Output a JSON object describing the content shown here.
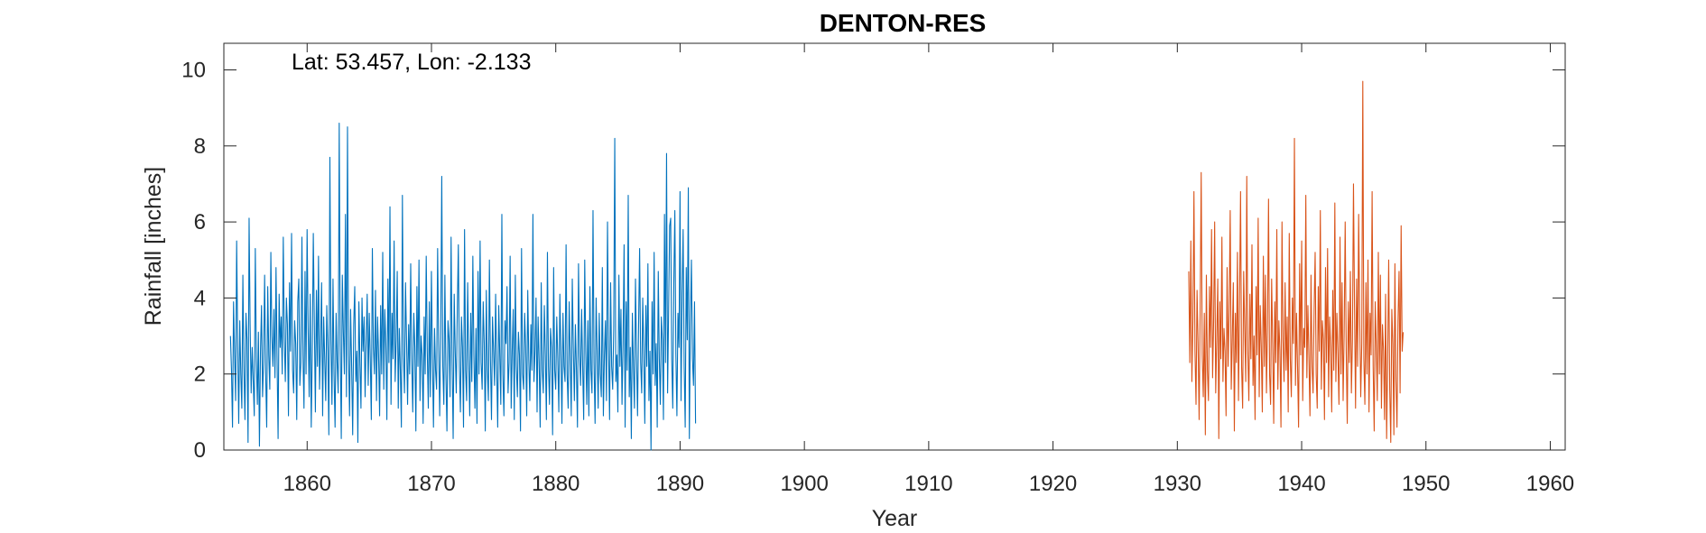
{
  "chart_data": {
    "type": "line",
    "title": "DENTON-RES",
    "annotation": "Lat: 53.457, Lon: -2.133",
    "xlabel": "Year",
    "ylabel": "Rainfall [inches]",
    "xlim": [
      1853.3,
      1961.2
    ],
    "ylim": [
      0,
      10.7
    ],
    "xticks": [
      1860,
      1870,
      1880,
      1890,
      1900,
      1910,
      1920,
      1930,
      1940,
      1950,
      1960
    ],
    "yticks": [
      0,
      2,
      4,
      6,
      8,
      10
    ],
    "grid": false,
    "colors": {
      "series_1": "#0072BD",
      "series_2": "#D95319",
      "axis": "#262626"
    },
    "series": [
      {
        "start": 1853.83,
        "step": 0.08333,
        "color": "#0072BD",
        "values": [
          3.0,
          2.1,
          0.6,
          3.9,
          2.5,
          1.3,
          5.5,
          2.8,
          0.7,
          3.4,
          2.0,
          1.1,
          4.6,
          2.2,
          0.8,
          3.6,
          2.9,
          0.2,
          6.1,
          3.3,
          1.5,
          2.7,
          1.8,
          0.9,
          5.3,
          2.4,
          1.2,
          3.1,
          0.1,
          2.6,
          3.8,
          1.4,
          2.3,
          4.6,
          2.0,
          0.6,
          4.3,
          2.5,
          1.6,
          5.2,
          3.0,
          2.2,
          3.7,
          1.9,
          4.8,
          2.4,
          0.3,
          4.1,
          2.7,
          3.5,
          2.0,
          5.6,
          2.9,
          1.8,
          4.0,
          3.3,
          0.9,
          4.4,
          2.6,
          5.7,
          2.1,
          1.5,
          3.4,
          2.8,
          0.8,
          3.9,
          4.5,
          1.7,
          2.3,
          5.6,
          2.5,
          1.1,
          4.7,
          2.0,
          5.8,
          3.2,
          1.4,
          4.1,
          0.6,
          2.6,
          5.7,
          3.3,
          1.0,
          4.2,
          2.2,
          5.1,
          1.6,
          2.8,
          4.4,
          0.9,
          3.5,
          2.4,
          1.3,
          3.8,
          2.6,
          0.4,
          7.7,
          2.9,
          1.2,
          4.5,
          2.0,
          0.6,
          3.6,
          2.3,
          1.5,
          8.6,
          2.8,
          0.3,
          4.6,
          3.1,
          2.0,
          6.2,
          1.4,
          8.5,
          2.5,
          0.9,
          3.7,
          2.2,
          0.4,
          3.3,
          4.3,
          1.8,
          2.6,
          0.2,
          3.9,
          2.3,
          1.1,
          4.0,
          2.6,
          3.5,
          1.4,
          2.9,
          4.1,
          1.7,
          3.6,
          2.4,
          0.8,
          5.3,
          2.7,
          2.0,
          4.2,
          1.3,
          3.5,
          2.5,
          0.9,
          3.8,
          2.0,
          5.2,
          1.6,
          3.7,
          2.8,
          0.8,
          4.5,
          2.3,
          6.4,
          1.2,
          3.6,
          2.4,
          5.5,
          1.8,
          2.9,
          4.7,
          1.1,
          3.2,
          2.1,
          0.6,
          6.7,
          2.5,
          1.5,
          4.4,
          2.9,
          1.2,
          3.3,
          2.0,
          4.9,
          2.4,
          1.0,
          3.6,
          2.7,
          0.5,
          4.3,
          2.2,
          5.0,
          1.3,
          3.0,
          2.5,
          0.7,
          3.5,
          2.0,
          5.1,
          2.6,
          1.1,
          3.9,
          1.4,
          4.7,
          2.4,
          0.6,
          3.2,
          2.1,
          1.6,
          5.3,
          2.8,
          0.9,
          3.1,
          7.2,
          2.2,
          1.2,
          4.6,
          2.0,
          0.5,
          3.4,
          2.9,
          1.4,
          5.6,
          2.3,
          0.3,
          4.1,
          2.6,
          1.5,
          3.7,
          5.4,
          2.2,
          1.0,
          3.5,
          2.7,
          0.6,
          5.8,
          2.1,
          1.3,
          4.4,
          2.4,
          0.9,
          3.6,
          1.8,
          5.1,
          2.5,
          1.1,
          3.2,
          0.7,
          4.7,
          2.0,
          5.5,
          2.3,
          1.6,
          3.9,
          2.8,
          0.5,
          4.2,
          2.1,
          1.3,
          5.0,
          2.4,
          0.8,
          3.5,
          2.6,
          1.7,
          4.1,
          2.2,
          0.6,
          3.8,
          2.5,
          1.2,
          6.2,
          2.0,
          0.9,
          3.4,
          2.8,
          4.3,
          1.5,
          2.3,
          5.1,
          1.1,
          2.6,
          3.7,
          0.8,
          4.6,
          2.2,
          1.4,
          3.1,
          2.5,
          0.5,
          5.3,
          2.0,
          1.6,
          3.6,
          2.7,
          0.9,
          4.2,
          2.4,
          1.3,
          3.3,
          2.1,
          6.2,
          1.8,
          2.6,
          4.0,
          1.0,
          3.5,
          2.3,
          0.6,
          4.4,
          2.1,
          1.5,
          3.8,
          2.5,
          0.8,
          5.2,
          2.2,
          1.2,
          3.2,
          2.7,
          0.4,
          4.8,
          2.1,
          1.6,
          3.5,
          2.4,
          1.0,
          4.1,
          2.6,
          0.7,
          3.6,
          2.2,
          1.8,
          5.4,
          2.0,
          1.1,
          3.9,
          2.4,
          0.9,
          4.5,
          2.7,
          1.3,
          3.3,
          2.1,
          0.6,
          4.9,
          2.5,
          1.7,
          3.7,
          2.2,
          0.8,
          5.0,
          2.6,
          1.2,
          3.4,
          0.9,
          4.3,
          2.1,
          1.5,
          6.3,
          2.3,
          0.7,
          4.0,
          2.6,
          1.1,
          3.6,
          2.0,
          1.4,
          4.8,
          0.9,
          2.5,
          3.4,
          1.3,
          6.0,
          2.7,
          0.8,
          4.4,
          2.2,
          1.6,
          3.2,
          8.2,
          1.8,
          2.5,
          1.0,
          4.6,
          2.2,
          3.7,
          1.2,
          2.8,
          5.4,
          0.6,
          3.9,
          2.1,
          6.7,
          1.4,
          2.7,
          0.3,
          3.6,
          2.2,
          1.1,
          4.5,
          2.5,
          0.9,
          3.3,
          5.3,
          2.3,
          1.5,
          4.0,
          2.6,
          0.7,
          3.8,
          2.2,
          4.9,
          1.3,
          2.6,
          0.0,
          3.9,
          2.0,
          5.2,
          1.7,
          2.8,
          0.6,
          4.7,
          2.4,
          1.2,
          3.5,
          2.9,
          0.8,
          6.2,
          2.3,
          7.8,
          1.5,
          3.7,
          5.9,
          6.1,
          2.4,
          1.1,
          4.4,
          6.3,
          2.5,
          0.9,
          3.6,
          2.7,
          6.8,
          1.3,
          4.1,
          5.8,
          2.2,
          0.6,
          4.8,
          2.9,
          6.9,
          0.3,
          3.3,
          5.0,
          2.4,
          1.7,
          3.9,
          0.7
        ]
      },
      {
        "start": 1930.92,
        "step": 0.08333,
        "color": "#D95319",
        "values": [
          4.7,
          2.3,
          5.5,
          1.8,
          3.4,
          6.8,
          2.6,
          1.2,
          4.2,
          2.8,
          0.8,
          3.7,
          7.3,
          2.5,
          1.4,
          3.6,
          0.4,
          4.6,
          2.1,
          1.3,
          4.3,
          2.7,
          5.8,
          1.9,
          3.4,
          6.0,
          1.5,
          2.9,
          4.5,
          0.3,
          3.9,
          2.4,
          5.6,
          1.8,
          3.2,
          2.6,
          0.9,
          4.8,
          2.2,
          3.7,
          6.3,
          1.6,
          2.9,
          4.4,
          0.5,
          3.6,
          2.3,
          5.2,
          1.3,
          3.9,
          6.8,
          2.2,
          1.1,
          4.7,
          3.2,
          1.8,
          7.2,
          2.6,
          1.3,
          4.1,
          2.4,
          5.4,
          1.7,
          3.0,
          0.8,
          4.3,
          2.5,
          6.1,
          1.4,
          3.8,
          2.7,
          1.0,
          5.1,
          2.2,
          4.6,
          1.5,
          3.3,
          6.6,
          2.0,
          1.2,
          4.5,
          2.8,
          0.7,
          3.9,
          2.3,
          5.8,
          1.6,
          3.4,
          2.6,
          0.6,
          6.0,
          2.9,
          1.8,
          4.4,
          2.1,
          3.5,
          1.0,
          5.7,
          2.4,
          1.4,
          4.0,
          2.8,
          8.2,
          1.7,
          3.6,
          2.2,
          0.6,
          4.9,
          2.5,
          5.5,
          1.3,
          3.2,
          2.7,
          6.7,
          1.9,
          3.8,
          2.4,
          0.9,
          4.6,
          2.2,
          1.5,
          3.7,
          5.2,
          2.0,
          1.1,
          4.3,
          2.6,
          6.3,
          1.6,
          3.4,
          2.9,
          0.8,
          4.8,
          2.3,
          5.3,
          1.4,
          3.5,
          2.7,
          1.0,
          4.2,
          2.1,
          6.5,
          1.8,
          3.6,
          2.5,
          1.2,
          5.6,
          2.0,
          4.4,
          1.3,
          3.1,
          6.0,
          2.6,
          0.7,
          3.9,
          2.3,
          4.7,
          1.5,
          2.9,
          7.0,
          3.8,
          1.1,
          4.5,
          2.2,
          6.2,
          3.5,
          1.4,
          2.8,
          9.7,
          2.4,
          1.2,
          4.4,
          2.0,
          5.0,
          1.0,
          3.6,
          2.5,
          6.8,
          2.2,
          0.5,
          3.9,
          2.7,
          1.3,
          5.2,
          2.0,
          4.6,
          1.1,
          3.3,
          2.6,
          0.8,
          4.1,
          0.3,
          2.4,
          5.0,
          1.6,
          0.2,
          3.7,
          2.8,
          0.4,
          4.9,
          1.8,
          0.6,
          3.4,
          4.7,
          1.5,
          5.9,
          2.6,
          3.1
        ]
      }
    ]
  }
}
